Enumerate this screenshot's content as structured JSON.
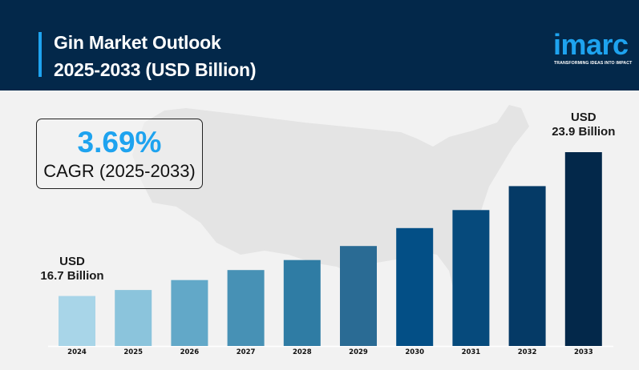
{
  "header": {
    "title_line1": "Gin Market Outlook",
    "title_line2": "2025-2033 (USD Billion)"
  },
  "logo": {
    "wordmark": "imarc",
    "tagline": "TRANSFORMING IDEAS INTO IMPACT"
  },
  "cagr": {
    "value": "3.69%",
    "label": "CAGR (2025-2033)"
  },
  "colors": {
    "header_bg": "#03284a",
    "accent": "#1ea3ef",
    "background": "#f2f2f2",
    "bars": [
      "#a8d5e8",
      "#8bc4dc",
      "#62a8c8",
      "#4791b5",
      "#2f7ca4",
      "#2a6b94",
      "#034f86",
      "#064a7c",
      "#053a66",
      "#03284a"
    ]
  },
  "chart_data": {
    "type": "bar",
    "title": "Gin Market Outlook 2025-2033 (USD Billion)",
    "xlabel": "",
    "ylabel": "USD Billion",
    "categories": [
      "2024",
      "2025",
      "2026",
      "2027",
      "2028",
      "2029",
      "2030",
      "2031",
      "2032",
      "2033"
    ],
    "values": [
      16.7,
      17.0,
      17.5,
      18.0,
      18.5,
      19.2,
      20.1,
      21.0,
      22.2,
      23.9
    ],
    "ylim": [
      14.2,
      24.5
    ],
    "grid": false,
    "legend": "none",
    "annotations": [
      {
        "category": "2024",
        "line1": "USD",
        "line2": "16.7 Billion"
      },
      {
        "category": "2033",
        "line1": "USD",
        "line2": "23.9 Billion"
      }
    ]
  }
}
